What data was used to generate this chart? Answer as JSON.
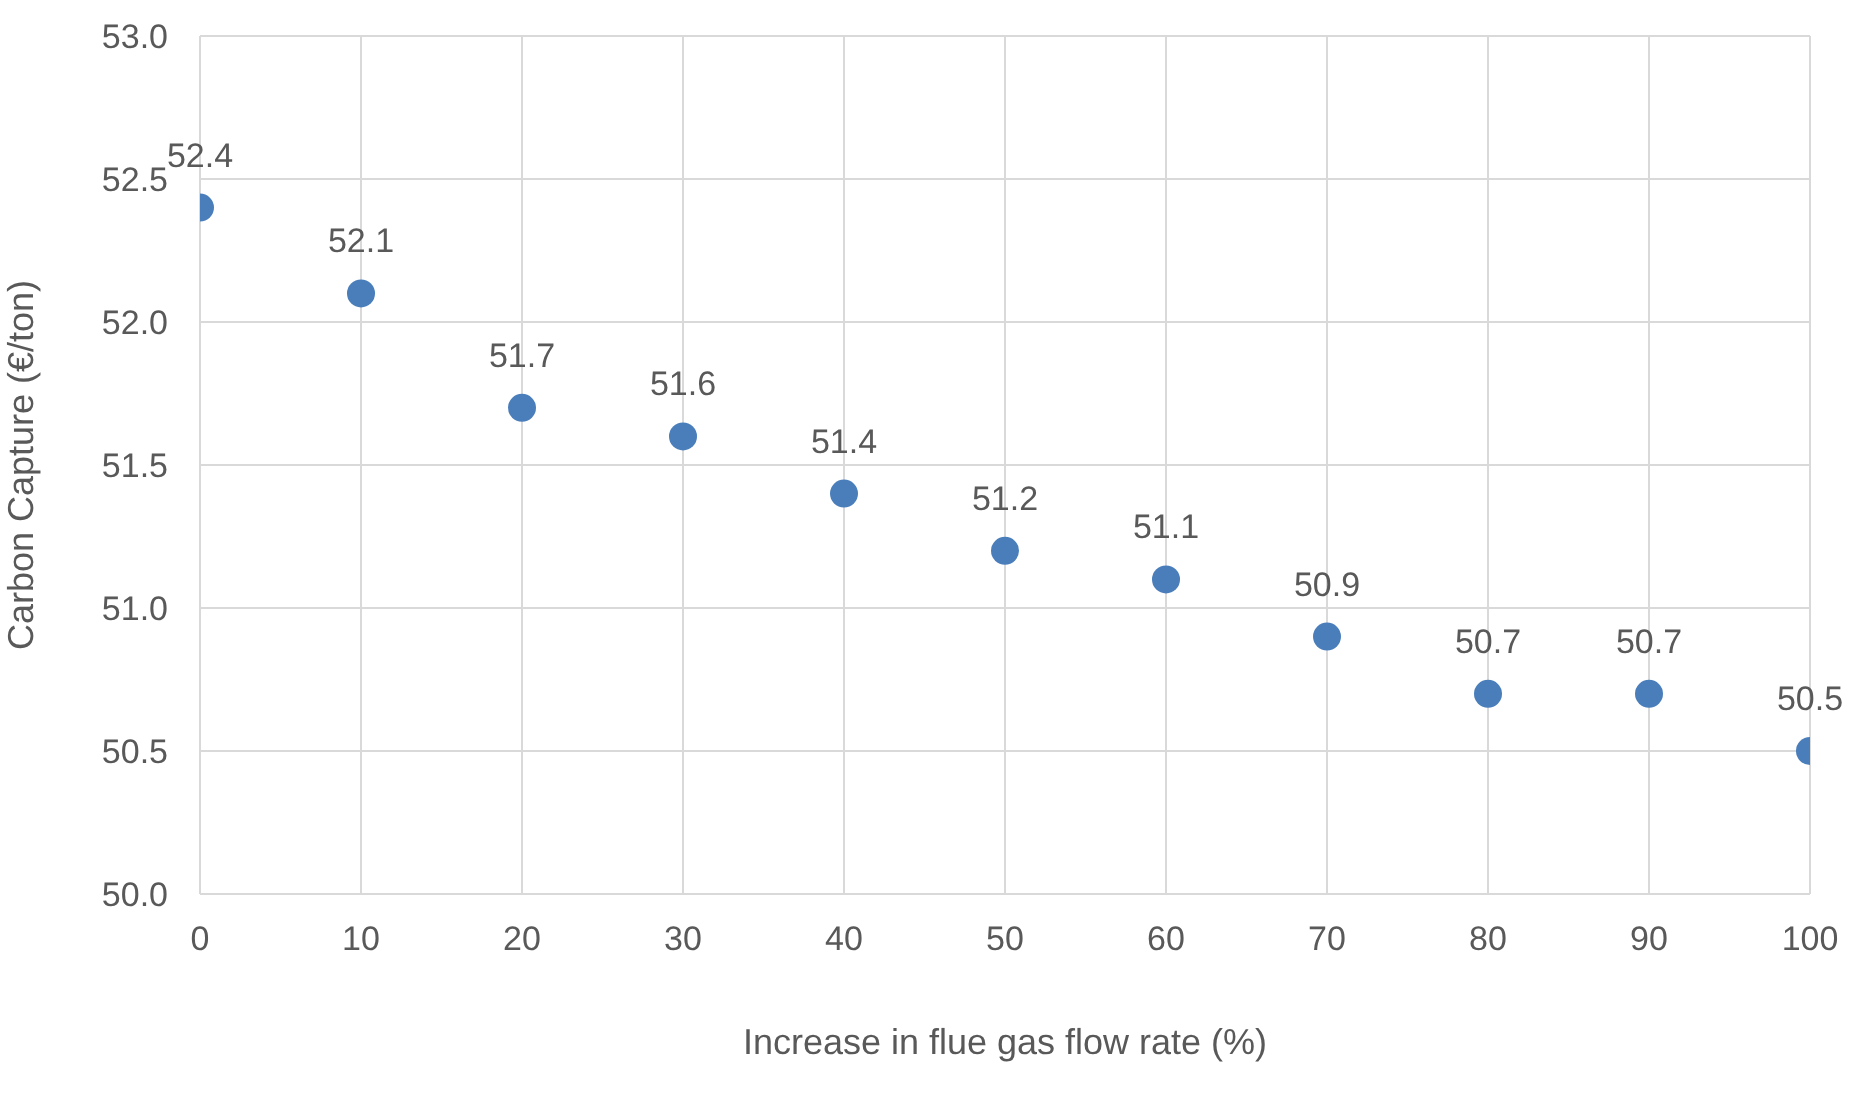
{
  "chart_data": {
    "type": "scatter",
    "xlabel": "Increase in flue gas flow rate (%)",
    "ylabel": "Carbon Capture (€/ton)",
    "x": [
      0,
      10,
      20,
      30,
      40,
      50,
      60,
      70,
      80,
      90,
      100
    ],
    "values": [
      52.4,
      52.1,
      51.7,
      51.6,
      51.4,
      51.2,
      51.1,
      50.9,
      50.7,
      50.7,
      50.5
    ],
    "color": "#4a7ebb",
    "marker": "circle",
    "data_labels": true,
    "grid": true,
    "xlim": [
      0,
      100
    ],
    "xticks": [
      0,
      10,
      20,
      30,
      40,
      50,
      60,
      70,
      80,
      90,
      100
    ],
    "ylim": [
      50,
      53
    ],
    "yticks": [
      {
        "value": 50,
        "label": "50.0"
      },
      {
        "value": 50.5,
        "label": "50.5"
      },
      {
        "value": 51,
        "label": "51.0"
      },
      {
        "value": 51.5,
        "label": "51.5"
      },
      {
        "value": 52,
        "label": "52.0"
      },
      {
        "value": 52.5,
        "label": "52.5"
      },
      {
        "value": 53,
        "label": "53.0"
      }
    ]
  }
}
